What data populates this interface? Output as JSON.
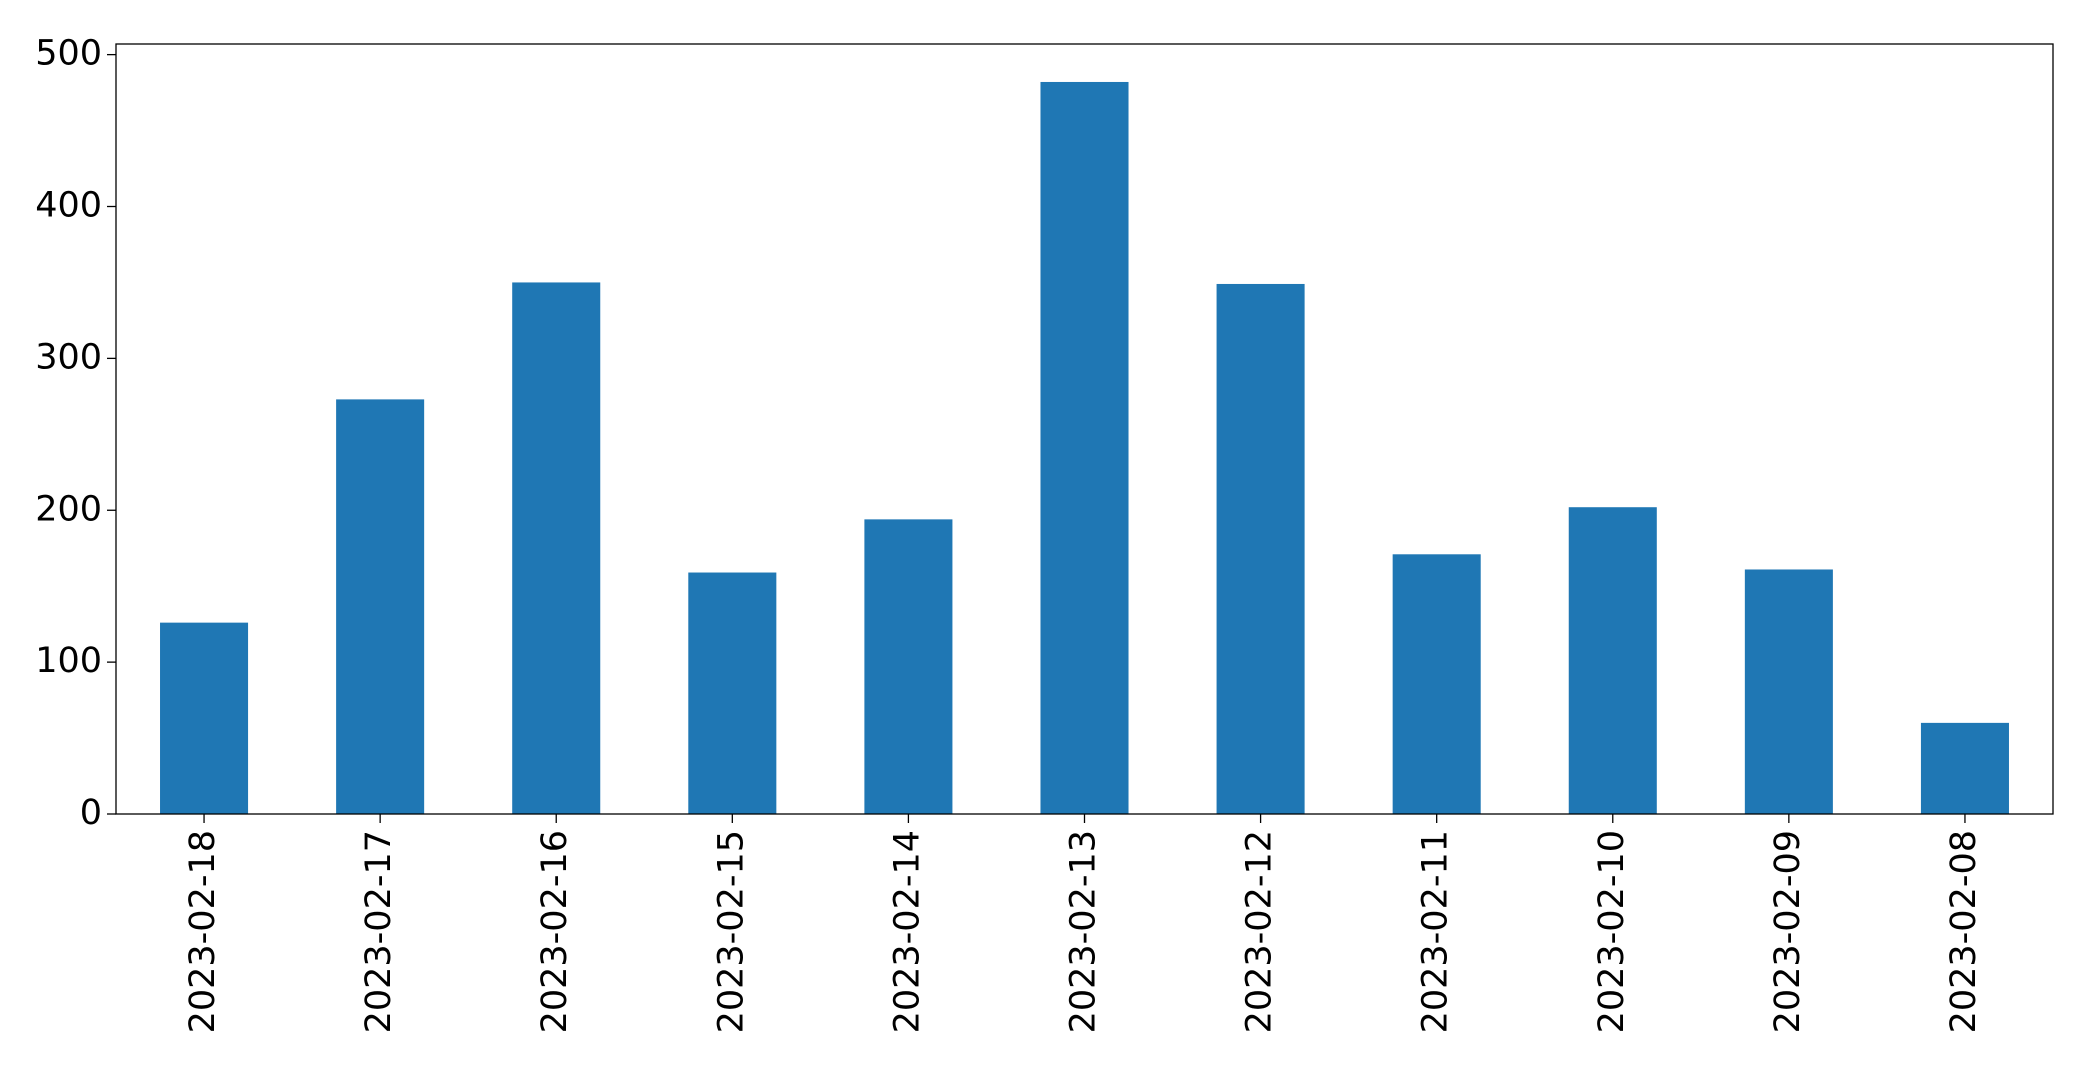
{
  "chart_data": {
    "type": "bar",
    "categories": [
      "2023-02-18",
      "2023-02-17",
      "2023-02-16",
      "2023-02-15",
      "2023-02-14",
      "2023-02-13",
      "2023-02-12",
      "2023-02-11",
      "2023-02-10",
      "2023-02-09",
      "2023-02-08"
    ],
    "values": [
      126,
      273,
      350,
      159,
      194,
      482,
      349,
      171,
      202,
      161,
      60
    ],
    "color": "#1f77b4",
    "ylim": [
      0,
      507
    ],
    "yticks": [
      0,
      100,
      200,
      300,
      400,
      500
    ],
    "grid": false
  }
}
